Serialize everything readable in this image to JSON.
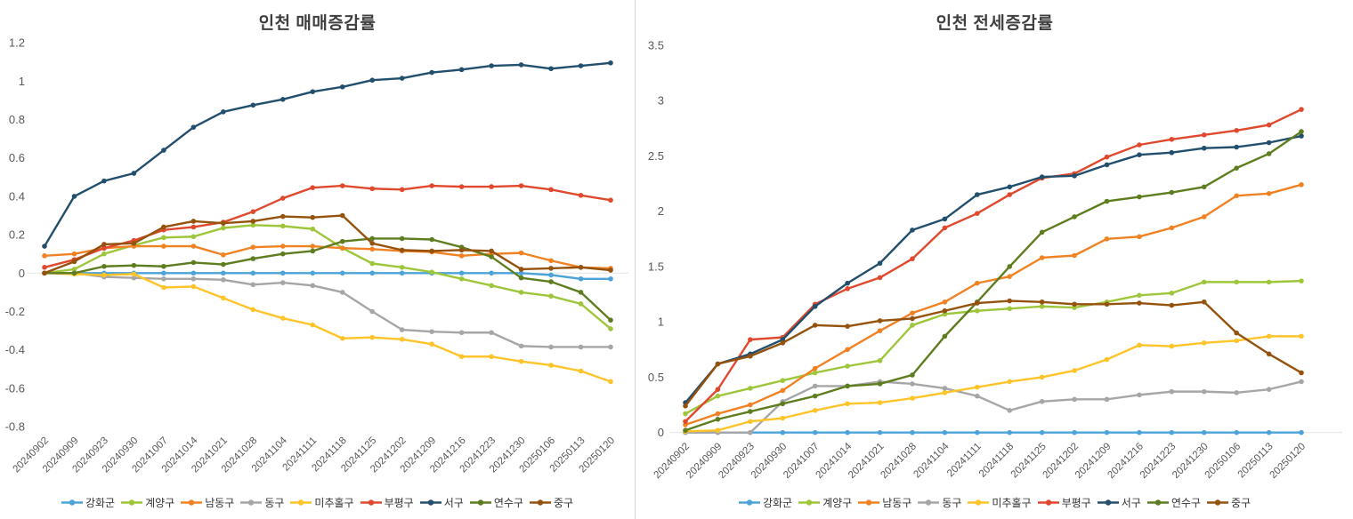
{
  "chart_data": [
    {
      "type": "line",
      "title": "인천 매매증감률",
      "xlabel": "",
      "ylabel": "",
      "ylim": [
        -0.8,
        1.2
      ],
      "ytick_step": 0.2,
      "grid": "baseline-only",
      "legend_position": "bottom",
      "categories": [
        "20240902",
        "20240909",
        "20240923",
        "20240930",
        "20241007",
        "20241014",
        "20241021",
        "20241028",
        "20241104",
        "20241111",
        "20241118",
        "20241125",
        "20241202",
        "20241209",
        "20241216",
        "20241223",
        "20241230",
        "20250106",
        "20250113",
        "20250120"
      ],
      "series": [
        {
          "name": "강화군",
          "color": "#4BA3D9",
          "values": [
            0,
            0,
            0,
            0,
            0,
            0,
            0,
            0,
            0,
            0,
            0,
            0,
            0,
            0,
            0,
            0,
            0,
            -0.01,
            -0.03,
            -0.03
          ]
        },
        {
          "name": "계양구",
          "color": "#9EC63B",
          "values": [
            0,
            0.02,
            0.1,
            0.145,
            0.185,
            0.19,
            0.235,
            0.25,
            0.245,
            0.23,
            0.13,
            0.05,
            0.03,
            0.005,
            -0.03,
            -0.065,
            -0.1,
            -0.12,
            -0.16,
            -0.29
          ]
        },
        {
          "name": "남동구",
          "color": "#F08223",
          "values": [
            0.09,
            0.1,
            0.13,
            0.14,
            0.14,
            0.14,
            0.095,
            0.135,
            0.14,
            0.14,
            0.13,
            0.125,
            0.115,
            0.11,
            0.09,
            0.1,
            0.105,
            0.065,
            0.03,
            0.025
          ]
        },
        {
          "name": "동구",
          "color": "#A6A6A6",
          "values": [
            0,
            0,
            -0.02,
            -0.025,
            -0.03,
            -0.03,
            -0.035,
            -0.06,
            -0.05,
            -0.065,
            -0.1,
            -0.2,
            -0.295,
            -0.305,
            -0.31,
            -0.31,
            -0.38,
            -0.385,
            -0.385,
            -0.385
          ]
        },
        {
          "name": "미추홀구",
          "color": "#FFC429",
          "values": [
            0,
            -0.005,
            -0.01,
            -0.005,
            -0.075,
            -0.07,
            -0.13,
            -0.19,
            -0.235,
            -0.27,
            -0.34,
            -0.335,
            -0.345,
            -0.37,
            -0.435,
            -0.435,
            -0.46,
            -0.48,
            -0.51,
            -0.565
          ]
        },
        {
          "name": "부평구",
          "color": "#E0492E",
          "values": [
            0.03,
            0.07,
            0.13,
            0.17,
            0.225,
            0.24,
            0.265,
            0.32,
            0.39,
            0.445,
            0.455,
            0.44,
            0.435,
            0.455,
            0.45,
            0.45,
            0.455,
            0.435,
            0.405,
            0.38
          ]
        },
        {
          "name": "서구",
          "color": "#224F6D",
          "values": [
            0.14,
            0.4,
            0.48,
            0.52,
            0.64,
            0.76,
            0.84,
            0.875,
            0.905,
            0.945,
            0.97,
            1.005,
            1.015,
            1.045,
            1.06,
            1.08,
            1.085,
            1.065,
            1.08,
            1.095
          ]
        },
        {
          "name": "연수구",
          "color": "#5E7D1E",
          "values": [
            0,
            0,
            0.035,
            0.04,
            0.035,
            0.055,
            0.045,
            0.075,
            0.1,
            0.115,
            0.165,
            0.18,
            0.18,
            0.175,
            0.135,
            0.085,
            -0.025,
            -0.045,
            -0.1,
            -0.245
          ]
        },
        {
          "name": "중구",
          "color": "#94520D",
          "values": [
            0,
            0.06,
            0.15,
            0.155,
            0.24,
            0.27,
            0.26,
            0.27,
            0.295,
            0.29,
            0.3,
            0.155,
            0.12,
            0.115,
            0.12,
            0.115,
            0.02,
            0.025,
            0.03,
            0.015
          ]
        }
      ]
    },
    {
      "type": "line",
      "title": "인천 전세증감률",
      "xlabel": "",
      "ylabel": "",
      "ylim": [
        0,
        3.5
      ],
      "ytick_step": 0.5,
      "grid": "baseline-only",
      "legend_position": "bottom",
      "categories": [
        "20240902",
        "20240909",
        "20240923",
        "20240930",
        "20241007",
        "20241014",
        "20241021",
        "20241028",
        "20241104",
        "20241111",
        "20241118",
        "20241125",
        "20241202",
        "20241209",
        "20241216",
        "20241223",
        "20241230",
        "20250106",
        "20250113",
        "20250120"
      ],
      "series": [
        {
          "name": "강화군",
          "color": "#4BA3D9",
          "values": [
            0,
            0,
            0,
            0,
            0,
            0,
            0,
            0,
            0,
            0,
            0,
            0,
            0,
            0,
            0,
            0,
            0,
            0,
            0,
            0
          ]
        },
        {
          "name": "계양구",
          "color": "#9EC63B",
          "values": [
            0.17,
            0.33,
            0.4,
            0.47,
            0.54,
            0.6,
            0.65,
            0.97,
            1.07,
            1.1,
            1.12,
            1.14,
            1.13,
            1.18,
            1.24,
            1.26,
            1.36,
            1.36,
            1.36,
            1.37
          ]
        },
        {
          "name": "남동구",
          "color": "#F08223",
          "values": [
            0.07,
            0.17,
            0.25,
            0.38,
            0.58,
            0.75,
            0.92,
            1.08,
            1.18,
            1.35,
            1.41,
            1.58,
            1.6,
            1.75,
            1.77,
            1.85,
            1.95,
            2.14,
            2.16,
            2.24
          ]
        },
        {
          "name": "동구",
          "color": "#A6A6A6",
          "values": [
            0,
            0,
            0,
            0.28,
            0.42,
            0.42,
            0.46,
            0.44,
            0.4,
            0.33,
            0.2,
            0.28,
            0.3,
            0.3,
            0.34,
            0.37,
            0.37,
            0.36,
            0.39,
            0.46
          ]
        },
        {
          "name": "미추홀구",
          "color": "#FFC429",
          "values": [
            0.01,
            0.02,
            0.1,
            0.13,
            0.2,
            0.26,
            0.27,
            0.31,
            0.36,
            0.41,
            0.46,
            0.5,
            0.56,
            0.66,
            0.79,
            0.78,
            0.81,
            0.83,
            0.87,
            0.87
          ]
        },
        {
          "name": "부평구",
          "color": "#E0492E",
          "values": [
            0.1,
            0.39,
            0.84,
            0.86,
            1.16,
            1.3,
            1.4,
            1.57,
            1.85,
            1.98,
            2.15,
            2.3,
            2.34,
            2.49,
            2.6,
            2.65,
            2.69,
            2.73,
            2.78,
            2.92
          ]
        },
        {
          "name": "서구",
          "color": "#224F6D",
          "values": [
            0.27,
            0.62,
            0.71,
            0.84,
            1.14,
            1.35,
            1.53,
            1.83,
            1.93,
            2.15,
            2.22,
            2.31,
            2.32,
            2.42,
            2.51,
            2.53,
            2.57,
            2.58,
            2.62,
            2.68
          ]
        },
        {
          "name": "연수구",
          "color": "#5E7D1E",
          "values": [
            0.02,
            0.12,
            0.19,
            0.26,
            0.33,
            0.42,
            0.44,
            0.52,
            0.87,
            1.18,
            1.5,
            1.81,
            1.95,
            2.09,
            2.13,
            2.17,
            2.22,
            2.39,
            2.52,
            2.72
          ]
        },
        {
          "name": "중구",
          "color": "#94520D",
          "values": [
            0.24,
            0.62,
            0.69,
            0.81,
            0.97,
            0.96,
            1.01,
            1.03,
            1.1,
            1.17,
            1.19,
            1.18,
            1.16,
            1.16,
            1.17,
            1.15,
            1.18,
            0.9,
            0.71,
            0.54
          ]
        }
      ]
    }
  ]
}
